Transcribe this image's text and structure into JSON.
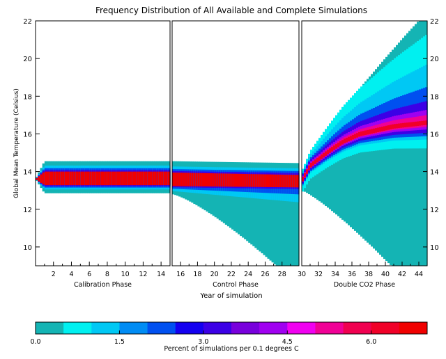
{
  "chart_data": {
    "type": "heatmap",
    "title": "Frequency Distribution of All Available and Complete Simulations",
    "xlabel": "Year of simulation",
    "ylabel": "Global Mean Temperature (Celsius)",
    "xlim": [
      0,
      45
    ],
    "ylim": [
      9,
      22
    ],
    "grid": false,
    "y_ticks": [
      10,
      12,
      14,
      16,
      18,
      20,
      22
    ],
    "panels": [
      {
        "label": "Calibration Phase",
        "x_range": [
          0,
          15
        ],
        "x_ticks": [
          2,
          4,
          6,
          8,
          10,
          12,
          14
        ],
        "profile": [
          [
            0,
            13.55
          ],
          [
            15,
            13.55
          ]
        ]
      },
      {
        "label": "Control Phase",
        "x_range": [
          15,
          30
        ],
        "x_ticks": [
          16,
          18,
          20,
          22,
          24,
          26,
          28
        ],
        "profile": [
          [
            15,
            13.55
          ],
          [
            30,
            13.45
          ]
        ]
      },
      {
        "label": "Double CO2 Phase",
        "x_range": [
          30,
          45
        ],
        "x_ticks": [
          30,
          32,
          34,
          36,
          38,
          40,
          42,
          44
        ],
        "profile": [
          [
            30,
            13.5
          ],
          [
            31,
            14.3
          ],
          [
            33,
            15.0
          ],
          [
            35,
            15.6
          ],
          [
            37,
            16.0
          ],
          [
            39,
            16.2
          ],
          [
            41,
            16.4
          ],
          [
            43,
            16.5
          ],
          [
            45,
            16.6
          ]
        ]
      }
    ],
    "colorbar": {
      "label": "Percent of simulations per 0.1 degrees C",
      "tick_values": [
        0.0,
        1.5,
        3.0,
        4.5,
        6.0
      ],
      "tick_labels": [
        "0.0",
        "1.5",
        "3.0",
        "4.5",
        "6.0"
      ],
      "range": [
        0,
        7.0
      ],
      "colors": [
        "#14b4b4",
        "#00f0f0",
        "#00c8f4",
        "#008cf4",
        "#0050f0",
        "#1400f0",
        "#3c00e6",
        "#7800dc",
        "#a000f0",
        "#f000f0",
        "#f00096",
        "#f00050",
        "#f00028",
        "#f00000"
      ]
    }
  }
}
